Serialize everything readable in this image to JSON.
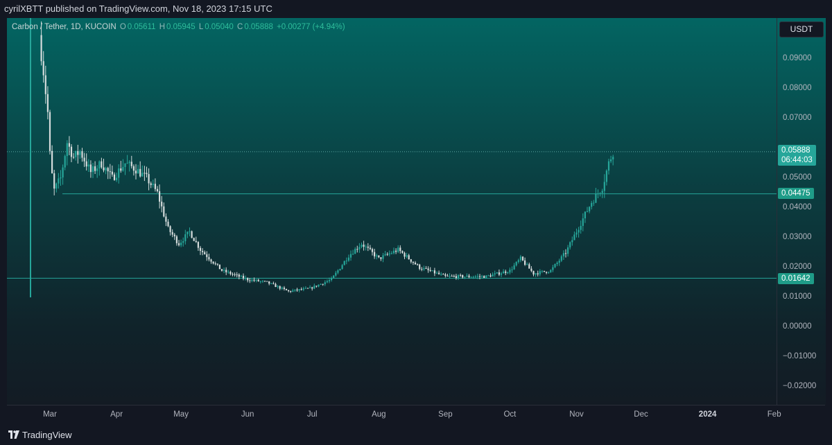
{
  "header": {
    "text": "cyrilXBTT published on TradingView.com, Nov 18, 2023 17:15 UTC"
  },
  "legend": {
    "symbol": "Carbon / Tether, 1D, KUCOIN",
    "o_label": "O",
    "o_value": "0.05611",
    "h_label": "H",
    "h_value": "0.05945",
    "l_label": "L",
    "l_value": "0.05040",
    "c_label": "C",
    "c_value": "0.05888",
    "change": "+0.00277 (+4.94%)"
  },
  "currency_button": "USDT",
  "price_axis": {
    "ticks": [
      "0.09000",
      "0.08000",
      "0.07000",
      "0.05000",
      "0.04000",
      "0.03000",
      "0.02000",
      "0.01000",
      "0.00000",
      "−0.01000",
      "−0.02000"
    ]
  },
  "price_tags": {
    "last": "0.05888",
    "countdown": "06:44:03",
    "level_upper": "0.04475",
    "level_lower": "0.01642"
  },
  "time_axis": {
    "labels": [
      "Mar",
      "Apr",
      "May",
      "Jun",
      "Jul",
      "Aug",
      "Sep",
      "Oct",
      "Nov",
      "Dec",
      "2024",
      "Feb"
    ]
  },
  "footer": {
    "brand": "TradingView"
  },
  "colors": {
    "up": "#26a69a",
    "down": "#d5dcdc",
    "level_line": "#26a69a",
    "last_tag": "#26a69a"
  },
  "chart_data": {
    "type": "candlestick",
    "title": "Carbon / Tether, 1D, KUCOIN",
    "ylim": [
      -0.025,
      0.1
    ],
    "horizontal_levels": [
      0.04475,
      0.01642
    ],
    "last_price": 0.05888,
    "x_tick_labels": [
      "Mar",
      "Apr",
      "May",
      "Jun",
      "Jul",
      "Aug",
      "Sep",
      "Oct",
      "Nov",
      "Dec",
      "2024",
      "Feb"
    ],
    "close_path": [
      {
        "date": "2023-02-24",
        "close": 0.098
      },
      {
        "date": "2023-02-26",
        "close": 0.086
      },
      {
        "date": "2023-02-28",
        "close": 0.072
      },
      {
        "date": "2023-03-01",
        "close": 0.058
      },
      {
        "date": "2023-03-02",
        "close": 0.051
      },
      {
        "date": "2023-03-03",
        "close": 0.046
      },
      {
        "date": "2023-03-06",
        "close": 0.05
      },
      {
        "date": "2023-03-09",
        "close": 0.062
      },
      {
        "date": "2023-03-12",
        "close": 0.057
      },
      {
        "date": "2023-03-15",
        "close": 0.059
      },
      {
        "date": "2023-03-20",
        "close": 0.052
      },
      {
        "date": "2023-03-25",
        "close": 0.055
      },
      {
        "date": "2023-03-30",
        "close": 0.05
      },
      {
        "date": "2023-04-05",
        "close": 0.055
      },
      {
        "date": "2023-04-10",
        "close": 0.053
      },
      {
        "date": "2023-04-15",
        "close": 0.05
      },
      {
        "date": "2023-04-20",
        "close": 0.045
      },
      {
        "date": "2023-04-25",
        "close": 0.033
      },
      {
        "date": "2023-04-30",
        "close": 0.028
      },
      {
        "date": "2023-05-05",
        "close": 0.032
      },
      {
        "date": "2023-05-10",
        "close": 0.026
      },
      {
        "date": "2023-05-20",
        "close": 0.019
      },
      {
        "date": "2023-06-01",
        "close": 0.016
      },
      {
        "date": "2023-06-10",
        "close": 0.015
      },
      {
        "date": "2023-06-20",
        "close": 0.012
      },
      {
        "date": "2023-06-30",
        "close": 0.013
      },
      {
        "date": "2023-07-10",
        "close": 0.016
      },
      {
        "date": "2023-07-18",
        "close": 0.024
      },
      {
        "date": "2023-07-24",
        "close": 0.028
      },
      {
        "date": "2023-08-01",
        "close": 0.023
      },
      {
        "date": "2023-08-10",
        "close": 0.026
      },
      {
        "date": "2023-08-20",
        "close": 0.02
      },
      {
        "date": "2023-09-01",
        "close": 0.017
      },
      {
        "date": "2023-09-20",
        "close": 0.017
      },
      {
        "date": "2023-10-01",
        "close": 0.019
      },
      {
        "date": "2023-10-06",
        "close": 0.023
      },
      {
        "date": "2023-10-12",
        "close": 0.018
      },
      {
        "date": "2023-10-20",
        "close": 0.019
      },
      {
        "date": "2023-10-27",
        "close": 0.025
      },
      {
        "date": "2023-11-03",
        "close": 0.035
      },
      {
        "date": "2023-11-08",
        "close": 0.042
      },
      {
        "date": "2023-11-13",
        "close": 0.047
      },
      {
        "date": "2023-11-16",
        "close": 0.055
      },
      {
        "date": "2023-11-18",
        "close": 0.05888
      }
    ]
  }
}
